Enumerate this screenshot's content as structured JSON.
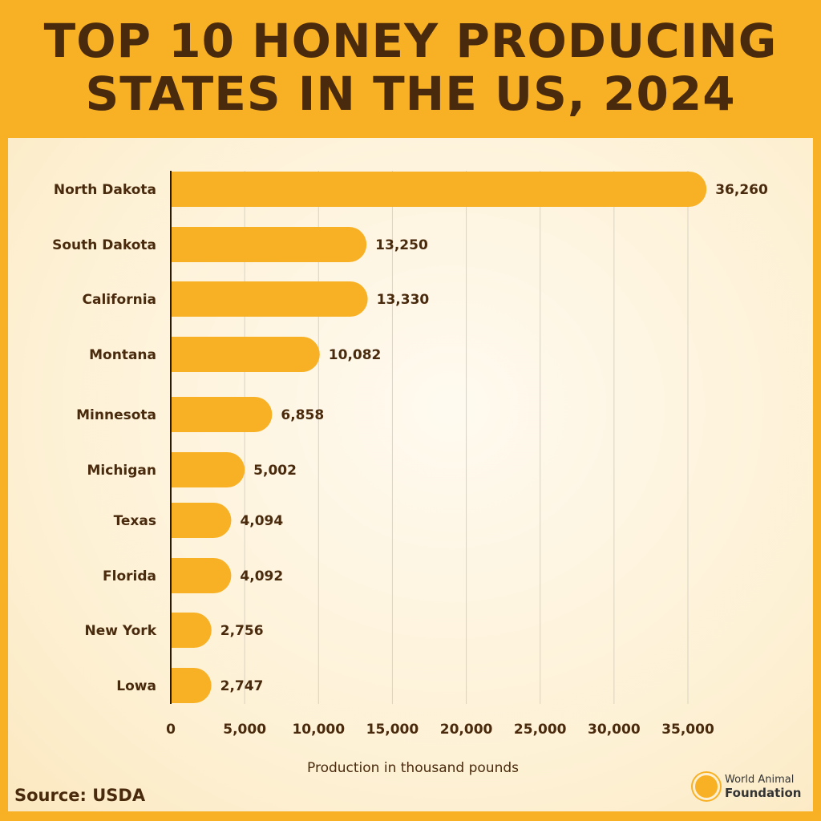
{
  "chart_data": {
    "type": "bar",
    "orientation": "horizontal",
    "title": "TOP 10 HONEY PRODUCING STATES IN THE US, 2024",
    "title_lines": [
      "TOP 10 HONEY PRODUCING",
      "STATES IN THE US, 2024"
    ],
    "categories": [
      "North Dakota",
      "South Dakota",
      "California",
      "Montana",
      "Minnesota",
      "Michigan",
      "Texas",
      "Florida",
      "New York",
      "Lowa"
    ],
    "values": [
      36260,
      13250,
      13330,
      10082,
      6858,
      5002,
      4094,
      4092,
      2756,
      2747
    ],
    "value_labels": [
      "36,260",
      "13,250",
      "13,330",
      "10,082",
      "6,858",
      "5,002",
      "4,094",
      "4,092",
      "2,756",
      "2,747"
    ],
    "xlabel": "Production in thousand pounds",
    "ylabel": "",
    "xlim": [
      0,
      35000
    ],
    "xticks": [
      0,
      5000,
      10000,
      15000,
      20000,
      25000,
      30000,
      35000
    ],
    "xtick_labels": [
      "0",
      "5,000",
      "10,000",
      "15,000",
      "20,000",
      "25,000",
      "30,000",
      "35,000"
    ],
    "grid": true,
    "bar_color": "#f8b124"
  },
  "footer": {
    "source": "Source: USDA",
    "logo_line1": "World Animal",
    "logo_line2": "Foundation"
  }
}
